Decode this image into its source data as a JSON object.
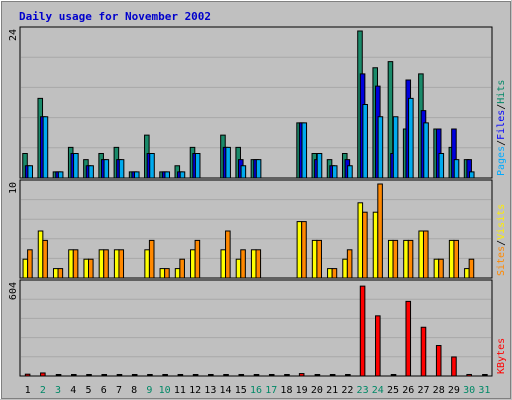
{
  "chart_data": {
    "type": "bar",
    "title": "Daily usage for November 2002",
    "days": [
      "1",
      "2",
      "3",
      "4",
      "5",
      "6",
      "7",
      "8",
      "9",
      "10",
      "11",
      "12",
      "13",
      "14",
      "15",
      "16",
      "17",
      "18",
      "19",
      "20",
      "21",
      "22",
      "23",
      "24",
      "25",
      "26",
      "27",
      "28",
      "29",
      "30",
      "31"
    ],
    "weekend_days": [
      "2",
      "3",
      "9",
      "10",
      "16",
      "17",
      "23",
      "24",
      "30",
      "31"
    ],
    "panels": [
      {
        "id": "hits-files-pages",
        "ymax_label": "24",
        "ymax": 24,
        "legend": [
          {
            "text": "Pages",
            "color": "#00aaff"
          },
          {
            "text": "/",
            "color": "#000000"
          },
          {
            "text": "Files",
            "color": "#0000ff"
          },
          {
            "text": "/",
            "color": "#000000"
          },
          {
            "text": "Hits",
            "color": "#008866"
          }
        ],
        "series": [
          {
            "key": "hits",
            "color": "#1a8a6a",
            "values": [
              4,
              13,
              1,
              5,
              3,
              4,
              5,
              1,
              7,
              1,
              2,
              5,
              0,
              7,
              5,
              3,
              0,
              0,
              9,
              4,
              3,
              4,
              24,
              18,
              19,
              8,
              17,
              8,
              5,
              3,
              0
            ]
          },
          {
            "key": "files",
            "color": "#0000dd",
            "values": [
              2,
              10,
              1,
              4,
              2,
              3,
              3,
              1,
              4,
              1,
              1,
              4,
              0,
              5,
              3,
              3,
              0,
              0,
              9,
              3,
              2,
              3,
              17,
              15,
              4,
              16,
              11,
              8,
              8,
              3,
              0
            ]
          },
          {
            "key": "pages",
            "color": "#00aaee",
            "values": [
              2,
              10,
              1,
              4,
              2,
              3,
              3,
              1,
              4,
              1,
              1,
              4,
              0,
              5,
              2,
              3,
              0,
              0,
              9,
              4,
              2,
              2,
              12,
              10,
              10,
              13,
              9,
              4,
              3,
              1,
              0
            ]
          }
        ]
      },
      {
        "id": "visits-sites",
        "ymax_label": "10",
        "ymax": 10,
        "legend": [
          {
            "text": "Sites",
            "color": "#ff8800"
          },
          {
            "text": "/",
            "color": "#000000"
          },
          {
            "text": "Visits",
            "color": "#ffee00"
          }
        ],
        "series": [
          {
            "key": "visits",
            "color": "#ffff00",
            "values": [
              2,
              5,
              1,
              3,
              2,
              3,
              3,
              0,
              3,
              1,
              1,
              3,
              0,
              3,
              2,
              3,
              0,
              0,
              6,
              4,
              1,
              2,
              8,
              7,
              4,
              4,
              5,
              2,
              4,
              1,
              0
            ]
          },
          {
            "key": "sites",
            "color": "#ff8800",
            "values": [
              3,
              4,
              1,
              3,
              2,
              3,
              3,
              0,
              4,
              1,
              2,
              4,
              0,
              5,
              3,
              3,
              0,
              0,
              6,
              4,
              1,
              3,
              7,
              10,
              4,
              4,
              5,
              2,
              4,
              2,
              0
            ]
          }
        ]
      },
      {
        "id": "kbytes",
        "ymax_label": "604",
        "ymax": 604,
        "legend": [
          {
            "text": "KBytes",
            "color": "#ff0000"
          }
        ],
        "series": [
          {
            "key": "kbytes",
            "color": "#ff0000",
            "values": [
              12,
              20,
              0,
              0,
              0,
              0,
              0,
              0,
              0,
              0,
              0,
              0,
              0,
              0,
              0,
              0,
              0,
              0,
              16,
              0,
              0,
              0,
              590,
              395,
              0,
              490,
              320,
              200,
              125,
              10,
              0
            ]
          }
        ]
      }
    ]
  }
}
